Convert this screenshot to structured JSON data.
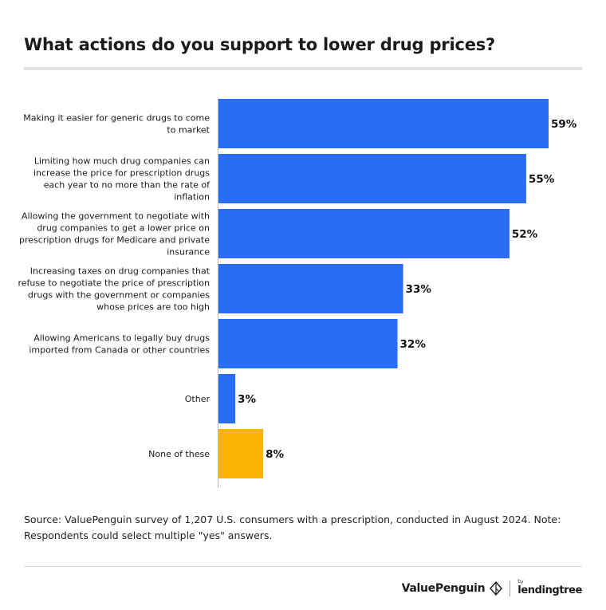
{
  "header": {
    "title": "What actions do you support to lower drug prices?"
  },
  "chart_data": {
    "type": "bar",
    "orientation": "horizontal",
    "categories": [
      [
        "Making it easier for generic drugs to come",
        "to market"
      ],
      [
        "Limiting how much drug companies can",
        "increase the price for prescription drugs",
        "each year to no more than the rate of",
        "inflation"
      ],
      [
        "Allowing the government to negotiate with",
        "drug companies to get a lower price on",
        "prescription drugs for Medicare and private",
        "insurance"
      ],
      [
        "Increasing taxes on drug companies that",
        "refuse to negotiate the price of prescription",
        "drugs with the government or companies",
        "whose prices are too high"
      ],
      [
        "Allowing Americans to legally buy drugs",
        "imported from Canada or other countries"
      ],
      [
        "Other"
      ],
      [
        "None of these"
      ]
    ],
    "values": [
      59,
      55,
      52,
      33,
      32,
      3,
      8
    ],
    "value_labels": [
      "59%",
      "55%",
      "52%",
      "33%",
      "32%",
      "3%",
      "8%"
    ],
    "colors": [
      "#2b6cf6",
      "#2b6cf6",
      "#2b6cf6",
      "#2b6cf6",
      "#2b6cf6",
      "#2b6cf6",
      "#fbb405"
    ],
    "xlim": [
      0,
      59
    ],
    "grid": false,
    "legend": "none"
  },
  "footer": {
    "source": "Source: ValuePenguin survey of 1,207 U.S. consumers with a prescription, conducted in August 2024. Note: Respondents could select multiple \"yes\" answers.",
    "brand_name": "ValuePenguin",
    "brand_by": "by",
    "brand_partner": "lendingtree"
  }
}
